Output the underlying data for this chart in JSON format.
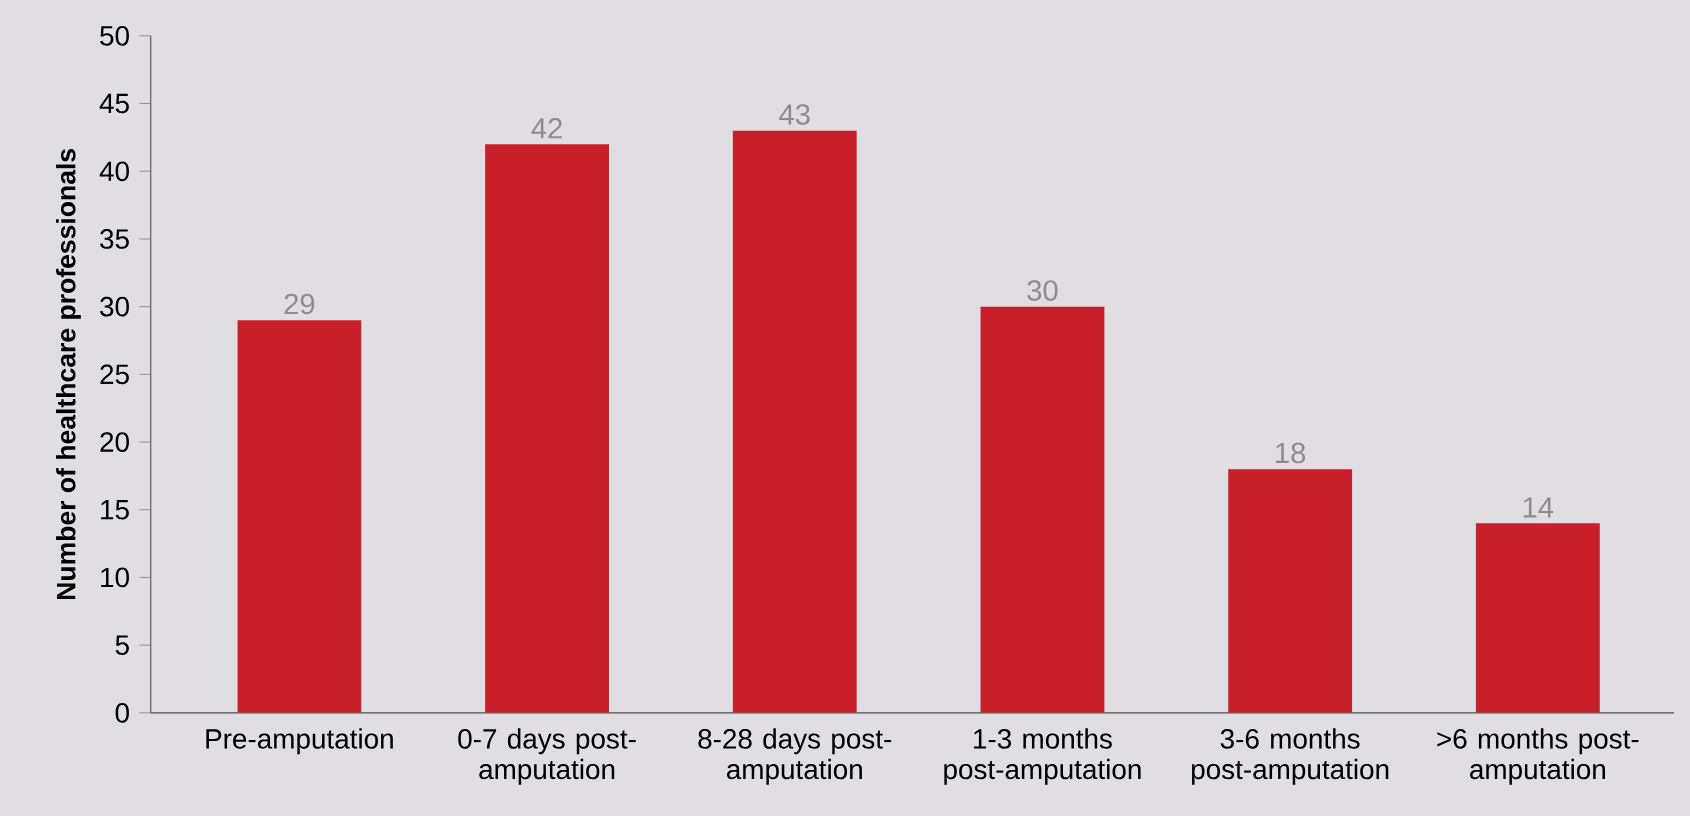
{
  "chart_data": {
    "type": "bar",
    "ylabel": "Number of healthcare professionals",
    "categories": [
      "Pre-amputation",
      "0-7 days post-amputation",
      "8-28 days post-amputation",
      "1-3 months post-amputation",
      "3-6 months post-amputation",
      ">6 months post-amputation"
    ],
    "values": [
      29,
      42,
      43,
      30,
      18,
      14
    ],
    "color": "#c8202a",
    "ylim": [
      0,
      50
    ],
    "yticks": [
      0,
      5,
      10,
      15,
      20,
      25,
      30,
      35,
      40,
      45,
      50
    ],
    "grid": false,
    "data_labels": true
  }
}
